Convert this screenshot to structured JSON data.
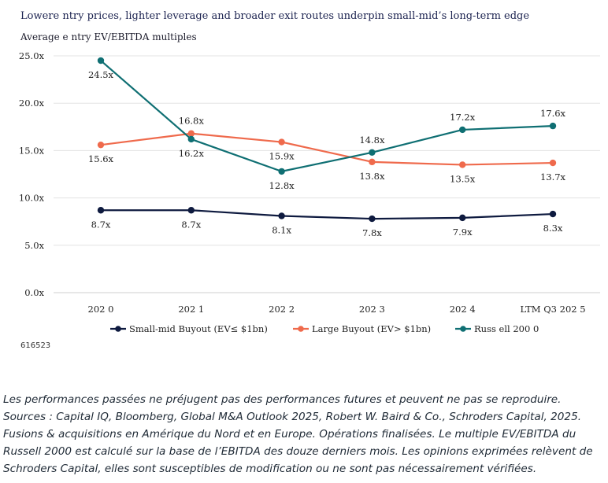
{
  "header": {
    "title": "Lowere ntry prices, lighter leverage and broader exit routes underpin small-mid’s long-term edge",
    "subtitle": "Average e ntry EV/EBITDA multiples"
  },
  "chart_data": {
    "type": "line",
    "title": "Lowere ntry prices, lighter leverage and broader exit routes underpin small-mid’s long-term edge",
    "ylabel": "Average e ntry EV/EBITDA multiples",
    "xlabel": "",
    "categories": [
      "202 0",
      "202 1",
      "202 2",
      "202 3",
      "202 4",
      "LTM Q3  202 5"
    ],
    "ylim": [
      0,
      25
    ],
    "yticks": [
      0,
      5,
      10,
      15,
      20,
      25
    ],
    "ytick_labels": [
      "0.0x",
      "5.0x",
      "10.0x",
      "15.0x",
      "20.0x",
      "25.0x"
    ],
    "grid": true,
    "legend_position": "bottom",
    "series": [
      {
        "name": "Small-mid Buyout (EV≤ $1bn)",
        "color": "#0e1a3f",
        "values": [
          8.7,
          8.7,
          8.1,
          7.8,
          7.9,
          8.3
        ],
        "labels": [
          "8.7x",
          "8.7x",
          "8.1x",
          "7.8x",
          "7.9x",
          "8.3x"
        ],
        "label_pos": [
          "below",
          "below",
          "below",
          "below",
          "below",
          "below"
        ]
      },
      {
        "name": "Large Buyout (EV> $1bn)",
        "color": "#ef6a4c",
        "values": [
          15.6,
          16.8,
          15.9,
          13.8,
          13.5,
          13.7
        ],
        "labels": [
          "15.6x",
          "16.8x",
          "15.9x",
          "13.8x",
          "13.5x",
          "13.7x"
        ],
        "label_pos": [
          "below",
          "above",
          "below",
          "below",
          "below",
          "below"
        ]
      },
      {
        "name": "Russ ell 200 0",
        "color": "#0f6f73",
        "values": [
          24.5,
          16.2,
          12.8,
          14.8,
          17.2,
          17.6
        ],
        "labels": [
          "24.5x",
          "16.2x",
          "12.8x",
          "14.8x",
          "17.2x",
          "17.6x"
        ],
        "label_pos": [
          "below",
          "below",
          "below",
          "above",
          "above",
          "above"
        ]
      }
    ]
  },
  "chart_code": "616523",
  "footnote": {
    "lines": [
      "Les performances passées ne préjugent pas des performances futures et peuvent ne pas se reproduire.",
      "Sources : Capital IQ, Bloomberg, Global M&A Outlook 2025, Robert W. Baird & Co., Schroders Capital, 2025.",
      "Fusions & acquisitions en Amérique du Nord et en Europe. Opérations finalisées. Le multiple EV/EBITDA du",
      "Russell 2000 est calculé sur la base de l’EBITDA des douze derniers mois. Les opinions exprimées relèvent de",
      "Schroders Capital, elles sont susceptibles de modification ou ne sont pas nécessairement vérifiées."
    ]
  }
}
